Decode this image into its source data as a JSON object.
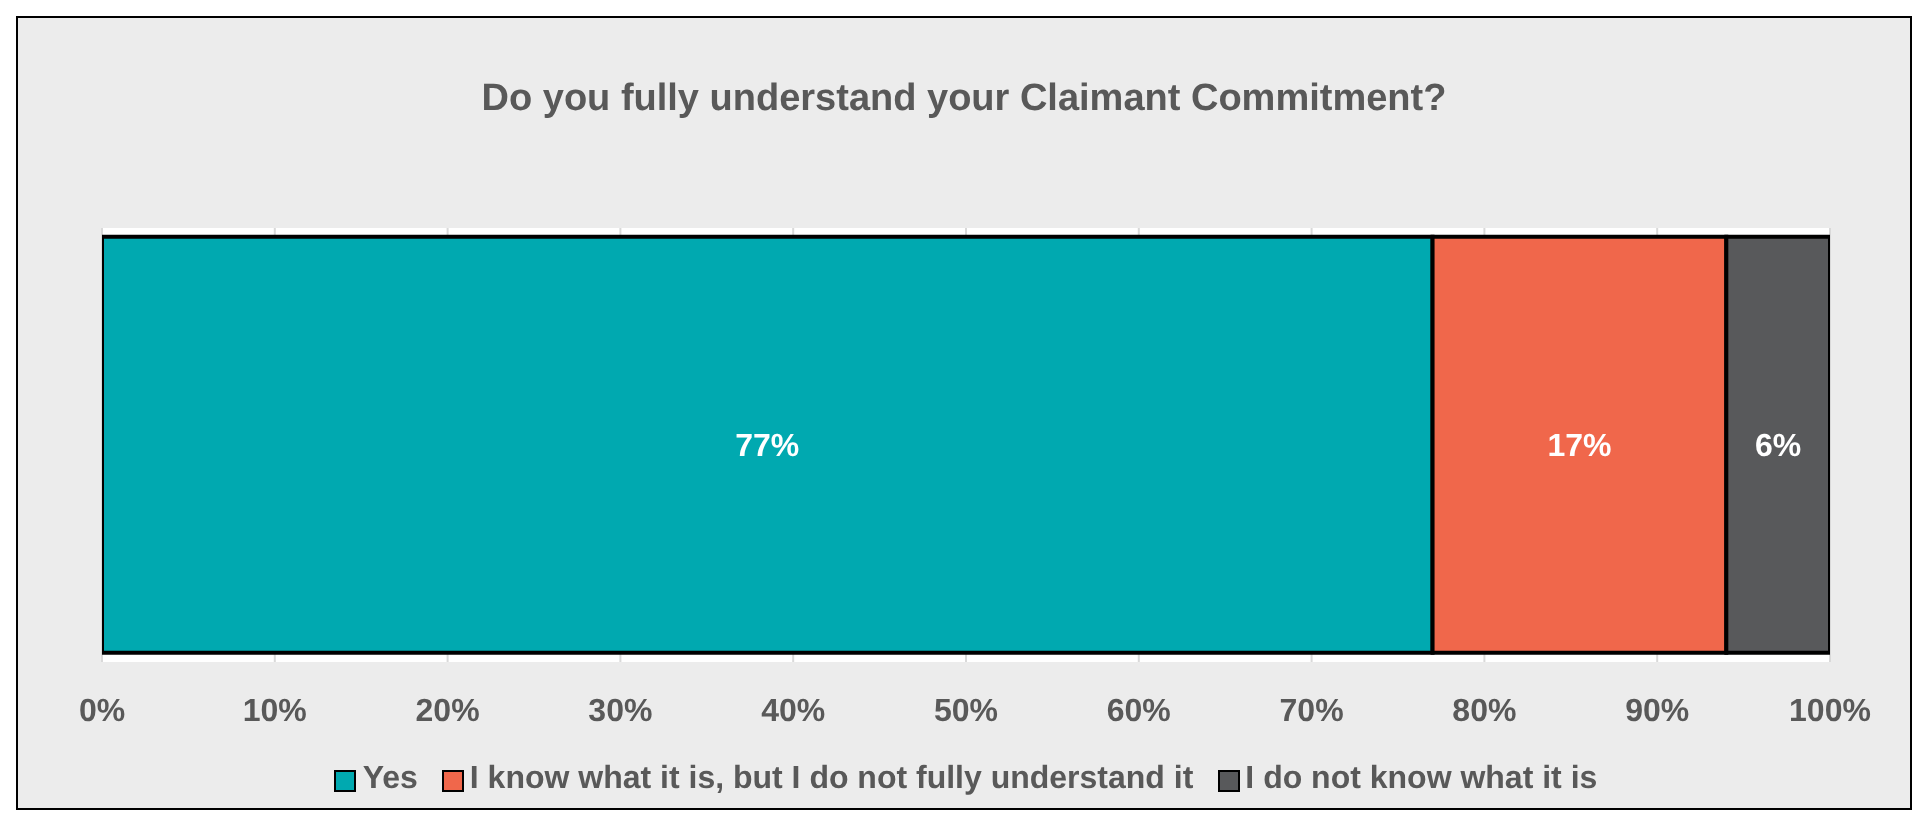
{
  "chart_data": {
    "type": "bar",
    "orientation": "horizontal",
    "stacked": true,
    "title": "Do you fully understand your Claimant Commitment?",
    "categories": [
      null
    ],
    "series": [
      {
        "name": "Yes",
        "color": "#00a9b0",
        "values": [
          77
        ],
        "value_labels": [
          "77%"
        ]
      },
      {
        "name": "I know what it is, but I do not fully understand it",
        "color": "#f0674b",
        "values": [
          17
        ],
        "value_labels": [
          "17%"
        ]
      },
      {
        "name": "I do not know what it is",
        "color": "#58595b",
        "values": [
          6
        ],
        "value_labels": [
          "6%"
        ]
      }
    ],
    "xlim": [
      0,
      100
    ],
    "xticks": [
      {
        "value": 0,
        "label": "0%"
      },
      {
        "value": 10,
        "label": "10%"
      },
      {
        "value": 20,
        "label": "20%"
      },
      {
        "value": 30,
        "label": "30%"
      },
      {
        "value": 40,
        "label": "40%"
      },
      {
        "value": 50,
        "label": "50%"
      },
      {
        "value": 60,
        "label": "60%"
      },
      {
        "value": 70,
        "label": "70%"
      },
      {
        "value": 80,
        "label": "80%"
      },
      {
        "value": 90,
        "label": "90%"
      },
      {
        "value": 100,
        "label": "100%"
      }
    ],
    "grid": "x",
    "legend": "bottom"
  }
}
